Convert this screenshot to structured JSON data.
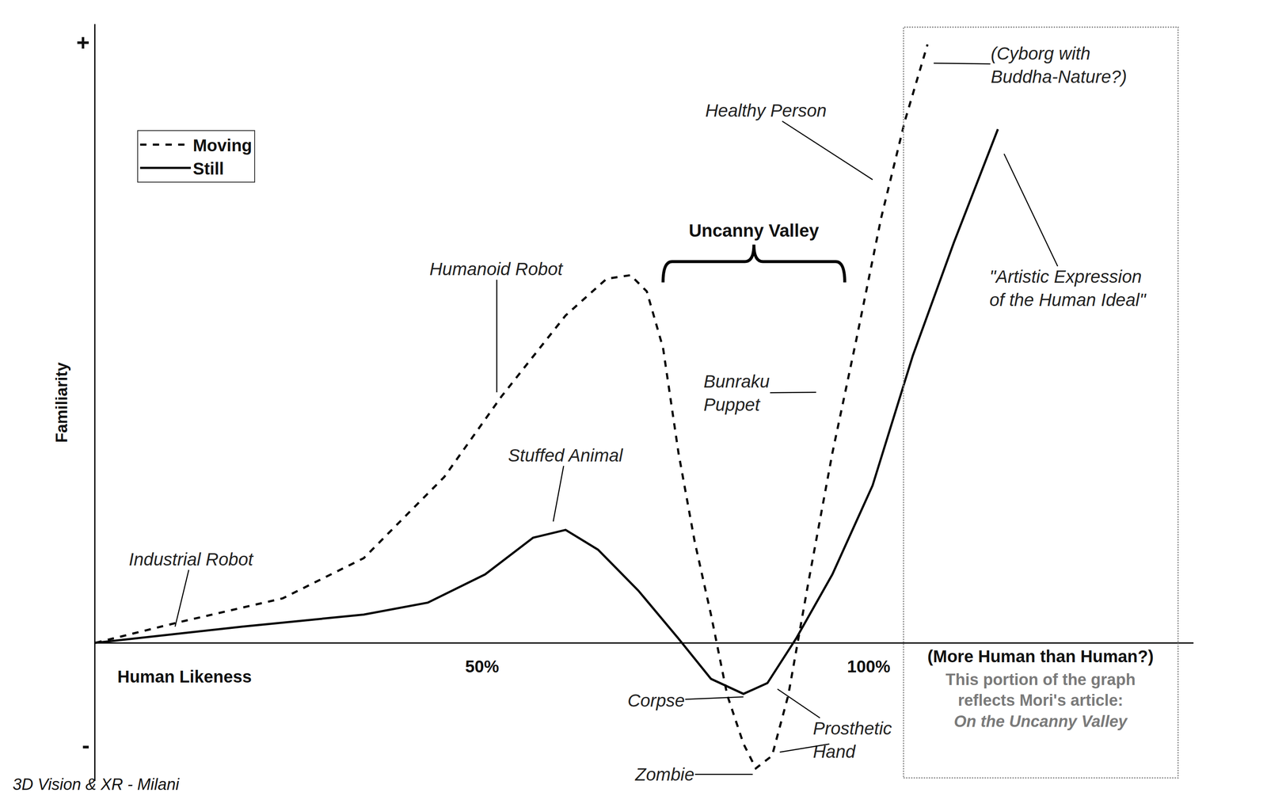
{
  "chart_data": {
    "type": "line",
    "x_label": "Human Likeness",
    "y_label": "Familiarity",
    "xlim": [
      0,
      142
    ],
    "ylim": [
      -23,
      103
    ],
    "xticks": [
      {
        "value": 50,
        "label": "50%"
      },
      {
        "value": 100,
        "label": "100%"
      }
    ],
    "yticks": [
      {
        "value": 100,
        "label": "+"
      },
      {
        "value": -17,
        "label": "-"
      }
    ],
    "grid": false,
    "legend": "top left",
    "series": [
      {
        "name": "Moving",
        "color": "#000000",
        "line_style": "dashed",
        "x": [
          0,
          10.7,
          24.2,
          34.7,
          45.1,
          52.5,
          60.8,
          66.1,
          69.2,
          71.3,
          73.4,
          75.4,
          77.5,
          79.6,
          81.7,
          83.8,
          85.4,
          87.5,
          89.6,
          92.2,
          95.3,
          98.4,
          101.6,
          104.7,
          107.6
        ],
        "values": [
          0,
          3.4,
          7.4,
          14.1,
          27.6,
          41,
          54.5,
          60.6,
          61.2,
          58.5,
          49.1,
          31.6,
          16.8,
          4.7,
          -8.7,
          -16.8,
          -20.9,
          -18.8,
          -8.7,
          10.1,
          31.6,
          50.5,
          70.7,
          87,
          99.6
        ]
      },
      {
        "name": "Still",
        "color": "#000000",
        "line_style": "solid",
        "x": [
          0,
          19,
          34.7,
          43,
          50.4,
          56.6,
          60.8,
          65,
          70.2,
          75.4,
          79.6,
          83.8,
          86.9,
          90.6,
          95.3,
          100.5,
          105.7,
          111,
          116.7
        ],
        "values": [
          0,
          2.7,
          4.7,
          6.7,
          11.4,
          17.5,
          18.8,
          15.5,
          8.7,
          0.7,
          -6,
          -8.5,
          -6.7,
          0.7,
          11.4,
          26.2,
          47.8,
          66.6,
          85.5
        ]
      }
    ],
    "annotations": [
      {
        "text": [
          "Industrial Robot"
        ],
        "x": 12.4,
        "y": 13.9,
        "targets": [
          [
            10.3,
            2.7
          ]
        ]
      },
      {
        "text": [
          "Humanoid Robot"
        ],
        "x": 51.9,
        "y": 62.2,
        "targets": [
          [
            51.9,
            41.7
          ]
        ]
      },
      {
        "text": [
          "Stuffed Animal"
        ],
        "x": 60.8,
        "y": 31.2,
        "targets": [
          [
            59.2,
            20.2
          ]
        ]
      },
      {
        "text": [
          "Bunraku",
          "Puppet"
        ],
        "x": 82.9,
        "y": 41.6,
        "targets": [
          [
            93.2,
            41.7
          ]
        ]
      },
      {
        "text": [
          "Healthy Person"
        ],
        "x": 86.7,
        "y": 88.6,
        "targets": [
          [
            100.5,
            77.1
          ]
        ]
      },
      {
        "text": [
          "(Cyborg with",
          "Buddha-Nature?)"
        ],
        "x": 124.6,
        "y": 96.2,
        "targets": [
          [
            108.4,
            96.5
          ]
        ]
      },
      {
        "text": [
          "\"Artistic Expression",
          "of the Human Ideal\""
        ],
        "x": 125.8,
        "y": 59,
        "targets": [
          [
            117.5,
            81.4
          ]
        ]
      },
      {
        "text": [
          "Corpse"
        ],
        "x": 72.5,
        "y": -9.6,
        "targets": [
          [
            83.8,
            -9
          ]
        ]
      },
      {
        "text": [
          "Zombie"
        ],
        "x": 73.6,
        "y": -21.9,
        "targets": [
          [
            85,
            -21.9
          ]
        ]
      },
      {
        "text": [
          "Prosthetic",
          "Hand"
        ],
        "x": 97.9,
        "y": -16.2,
        "targets": [
          [
            88.2,
            -7.7
          ],
          [
            88.5,
            -18.2
          ]
        ]
      }
    ],
    "uncanny_valley": {
      "text": "Uncanny Valley",
      "from": 73.4,
      "to": 96.9,
      "y": 60
    },
    "region": {
      "from": 104.5,
      "to": 140,
      "title": "(More Human than Human?)",
      "note": [
        "This portion of the graph",
        "reflects Mori's article:",
        "On the Uncanny Valley"
      ]
    },
    "footer": "3D Vision & XR - Milani"
  }
}
